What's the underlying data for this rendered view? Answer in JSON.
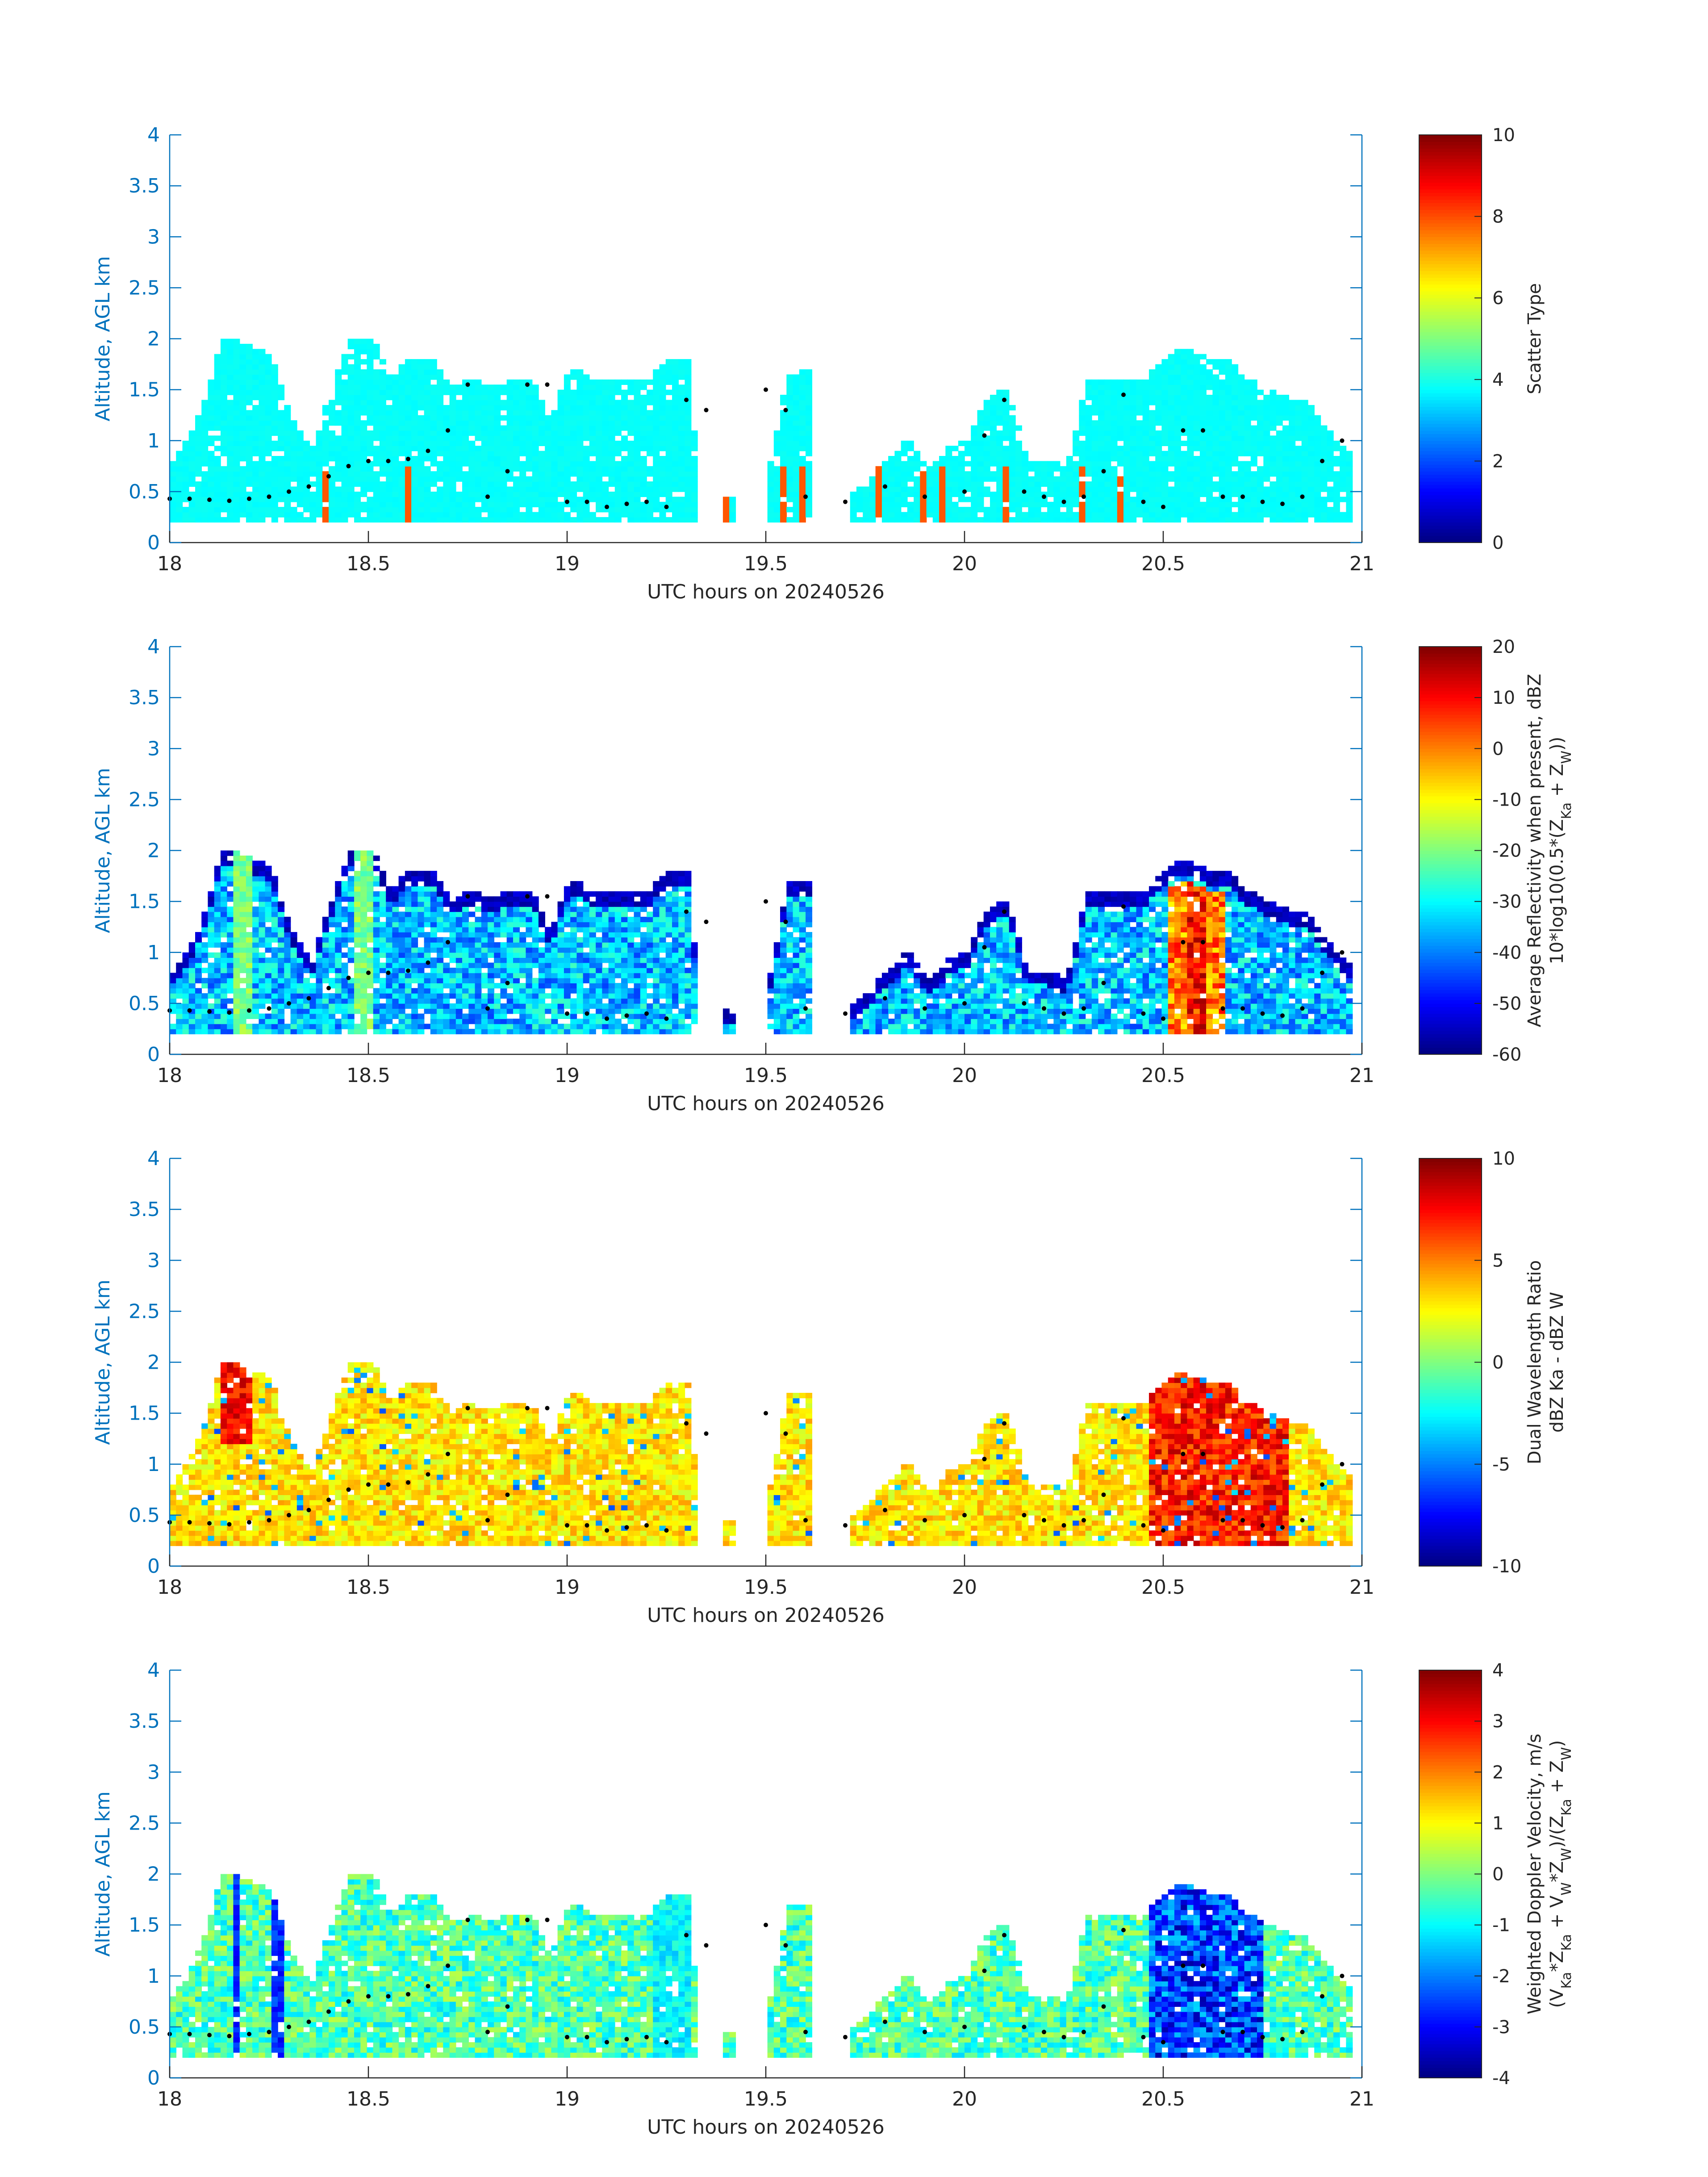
{
  "figure": {
    "panels": [
      {
        "id": "scatter-type",
        "ylabel": "Altitude, AGL km",
        "xlabel": "UTC hours on 20240526",
        "colorbar": {
          "label_lines": [
            "Scatter Type"
          ],
          "min": 0,
          "max": 10,
          "ticks": [
            "0",
            "2",
            "4",
            "6",
            "8",
            "10"
          ],
          "colormap": "jet"
        }
      },
      {
        "id": "average-reflectivity",
        "ylabel": "Altitude, AGL km",
        "xlabel": "UTC hours on 20240526",
        "colorbar": {
          "label_lines": [
            "Average Reflectivity when present, dBZ",
            "10*log10(0.5*(Z_Ka + Z_W))"
          ],
          "min": -60,
          "max": 20,
          "ticks": [
            "-60",
            "-50",
            "-40",
            "-30",
            "-20",
            "-10",
            "0",
            "10",
            "20"
          ],
          "colormap": "jet"
        }
      },
      {
        "id": "dual-wavelength-ratio",
        "ylabel": "Altitude, AGL km",
        "xlabel": "UTC hours on 20240526",
        "colorbar": {
          "label_lines": [
            "Dual Wavelength Ratio",
            "dBZ Ka - dBZ W"
          ],
          "min": -10,
          "max": 10,
          "ticks": [
            "-10",
            "-5",
            "0",
            "5",
            "10"
          ],
          "colormap": "jet"
        }
      },
      {
        "id": "weighted-doppler-velocity",
        "ylabel": "Altitude, AGL km",
        "xlabel": "UTC hours on 20240526",
        "colorbar": {
          "label_lines": [
            "Weighted Doppler Velocity, m/s",
            "(V_Ka*Z_Ka + V_W*Z_W)/(Z_Ka + Z_W)"
          ],
          "min": -4,
          "max": 4,
          "ticks": [
            "-4",
            "-3",
            "-2",
            "-1",
            "0",
            "1",
            "2",
            "3",
            "4"
          ],
          "colormap": "jet"
        }
      }
    ]
  },
  "chart_data": [
    {
      "type": "heatmap",
      "title": "",
      "xlabel": "UTC hours on 20240526",
      "ylabel": "Altitude, AGL km",
      "xlim": [
        18,
        21
      ],
      "ylim": [
        0,
        4
      ],
      "x_ticks": [
        "18",
        "18.5",
        "19",
        "19.5",
        "20",
        "20.5",
        "21"
      ],
      "y_ticks": [
        "0",
        "0.5",
        "1",
        "1.5",
        "2",
        "2.5",
        "3",
        "3.5",
        "4"
      ],
      "colorbar_label": "Scatter Type",
      "clim": [
        0,
        10
      ],
      "dominant_value": 3.8,
      "minor_value": 7.9,
      "echo_bottom_km": 0.2,
      "cloud_top_profile": [
        [
          18.0,
          0.8
        ],
        [
          18.05,
          1.1
        ],
        [
          18.1,
          1.6
        ],
        [
          18.12,
          2.0
        ],
        [
          18.15,
          2.0
        ],
        [
          18.2,
          1.9
        ],
        [
          18.25,
          1.8
        ],
        [
          18.3,
          1.2
        ],
        [
          18.35,
          0.9
        ],
        [
          18.4,
          1.5
        ],
        [
          18.45,
          2.0
        ],
        [
          18.5,
          2.0
        ],
        [
          18.55,
          1.6
        ],
        [
          18.6,
          1.8
        ],
        [
          18.65,
          1.8
        ],
        [
          18.7,
          1.5
        ],
        [
          18.75,
          1.6
        ],
        [
          18.8,
          1.5
        ],
        [
          18.85,
          1.6
        ],
        [
          18.9,
          1.6
        ],
        [
          18.95,
          1.2
        ],
        [
          19.0,
          1.7
        ],
        [
          19.05,
          1.6
        ],
        [
          19.1,
          1.6
        ],
        [
          19.15,
          1.6
        ],
        [
          19.2,
          1.6
        ],
        [
          19.25,
          1.8
        ],
        [
          19.3,
          1.8
        ],
        [
          19.32,
          0.6
        ],
        [
          19.4,
          0.4
        ],
        [
          19.5,
          0.7
        ],
        [
          19.55,
          1.7
        ],
        [
          19.6,
          1.7
        ],
        [
          19.65,
          0.3
        ],
        [
          19.72,
          0.5
        ],
        [
          19.8,
          0.8
        ],
        [
          19.85,
          1.0
        ],
        [
          19.9,
          0.7
        ],
        [
          19.95,
          0.9
        ],
        [
          20.0,
          1.0
        ],
        [
          20.05,
          1.4
        ],
        [
          20.1,
          1.5
        ],
        [
          20.15,
          0.8
        ],
        [
          20.2,
          0.8
        ],
        [
          20.25,
          0.7
        ],
        [
          20.3,
          1.6
        ],
        [
          20.35,
          1.6
        ],
        [
          20.4,
          1.6
        ],
        [
          20.45,
          1.6
        ],
        [
          20.5,
          1.8
        ],
        [
          20.55,
          1.9
        ],
        [
          20.6,
          1.8
        ],
        [
          20.65,
          1.8
        ],
        [
          20.7,
          1.6
        ],
        [
          20.75,
          1.5
        ],
        [
          20.8,
          1.4
        ],
        [
          20.85,
          1.4
        ],
        [
          20.9,
          1.1
        ],
        [
          20.95,
          0.9
        ]
      ],
      "marker_series": [
        [
          18.0,
          0.43
        ],
        [
          18.05,
          0.43
        ],
        [
          18.1,
          0.42
        ],
        [
          18.15,
          0.41
        ],
        [
          18.2,
          0.43
        ],
        [
          18.25,
          0.45
        ],
        [
          18.3,
          0.5
        ],
        [
          18.35,
          0.55
        ],
        [
          18.4,
          0.65
        ],
        [
          18.45,
          0.75
        ],
        [
          18.5,
          0.8
        ],
        [
          18.55,
          0.8
        ],
        [
          18.6,
          0.82
        ],
        [
          18.65,
          0.9
        ],
        [
          18.7,
          1.1
        ],
        [
          18.75,
          1.55
        ],
        [
          18.8,
          0.45
        ],
        [
          18.85,
          0.7
        ],
        [
          18.9,
          1.55
        ],
        [
          18.95,
          1.55
        ],
        [
          19.0,
          0.4
        ],
        [
          19.05,
          0.4
        ],
        [
          19.1,
          0.35
        ],
        [
          19.15,
          0.38
        ],
        [
          19.2,
          0.4
        ],
        [
          19.25,
          0.35
        ],
        [
          19.3,
          1.4
        ],
        [
          19.35,
          1.3
        ],
        [
          19.5,
          1.5
        ],
        [
          19.55,
          1.3
        ],
        [
          19.6,
          0.45
        ],
        [
          19.7,
          0.4
        ],
        [
          19.8,
          0.55
        ],
        [
          19.9,
          0.45
        ],
        [
          20.0,
          0.5
        ],
        [
          20.05,
          1.05
        ],
        [
          20.1,
          1.4
        ],
        [
          20.15,
          0.5
        ],
        [
          20.2,
          0.45
        ],
        [
          20.25,
          0.4
        ],
        [
          20.3,
          0.45
        ],
        [
          20.35,
          0.7
        ],
        [
          20.4,
          1.45
        ],
        [
          20.45,
          0.4
        ],
        [
          20.5,
          0.35
        ],
        [
          20.55,
          1.1
        ],
        [
          20.6,
          1.1
        ],
        [
          20.65,
          0.45
        ],
        [
          20.7,
          0.45
        ],
        [
          20.75,
          0.4
        ],
        [
          20.8,
          0.38
        ],
        [
          20.85,
          0.45
        ],
        [
          20.9,
          0.8
        ],
        [
          20.95,
          1.0
        ]
      ]
    },
    {
      "type": "heatmap",
      "title": "",
      "xlabel": "UTC hours on 20240526",
      "ylabel": "Altitude, AGL km",
      "xlim": [
        18,
        21
      ],
      "ylim": [
        0,
        4
      ],
      "x_ticks": [
        "18",
        "18.5",
        "19",
        "19.5",
        "20",
        "20.5",
        "21"
      ],
      "y_ticks": [
        "0",
        "0.5",
        "1",
        "1.5",
        "2",
        "2.5",
        "3",
        "3.5",
        "4"
      ],
      "colorbar_label": "Average Reflectivity when present, dBZ",
      "clim": [
        -60,
        20
      ],
      "typical_range": [
        -60,
        -25
      ],
      "peak_value": 10,
      "peak_hours": [
        20.5,
        20.65
      ]
    },
    {
      "type": "heatmap",
      "title": "",
      "xlabel": "UTC hours on 20240526",
      "ylabel": "Altitude, AGL km",
      "xlim": [
        18,
        21
      ],
      "ylim": [
        0,
        4
      ],
      "x_ticks": [
        "18",
        "18.5",
        "19",
        "19.5",
        "20",
        "20.5",
        "21"
      ],
      "y_ticks": [
        "0",
        "0.5",
        "1",
        "1.5",
        "2",
        "2.5",
        "3",
        "3.5",
        "4"
      ],
      "colorbar_label": "Dual Wavelength Ratio",
      "clim": [
        -10,
        10
      ],
      "typical_range": [
        -2,
        5
      ],
      "peak_value": 9
    },
    {
      "type": "heatmap",
      "title": "",
      "xlabel": "UTC hours on 20240526",
      "ylabel": "Altitude, AGL km",
      "xlim": [
        18,
        21
      ],
      "ylim": [
        0,
        4
      ],
      "x_ticks": [
        "18",
        "18.5",
        "19",
        "19.5",
        "20",
        "20.5",
        "21"
      ],
      "y_ticks": [
        "0",
        "0.5",
        "1",
        "1.5",
        "2",
        "2.5",
        "3",
        "3.5",
        "4"
      ],
      "colorbar_label": "Weighted Doppler Velocity, m/s",
      "clim": [
        -4,
        4
      ],
      "typical_range": [
        -2,
        1
      ],
      "min_value": -3.8
    }
  ]
}
